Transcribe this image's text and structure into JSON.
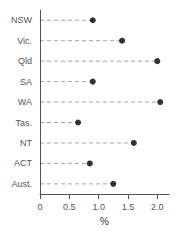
{
  "chart_data": {
    "type": "dot",
    "orientation": "horizontal",
    "categories": [
      "NSW",
      "Vic.",
      "Qld",
      "SA",
      "WA",
      "Tas.",
      "NT",
      "ACT",
      "Aust."
    ],
    "values": [
      0.9,
      1.4,
      2.0,
      0.9,
      2.05,
      0.65,
      1.6,
      0.85,
      1.25
    ],
    "xlabel": "%",
    "xlim": [
      0,
      2.2
    ],
    "xticks": [
      0,
      0.5,
      {
        "value": 1.0,
        "label": "1.0"
      },
      1.5,
      {
        "value": 2.0,
        "label": "2.0"
      }
    ],
    "color": "#000000",
    "marker": "circle",
    "line_style": "dashed",
    "grid": false
  }
}
